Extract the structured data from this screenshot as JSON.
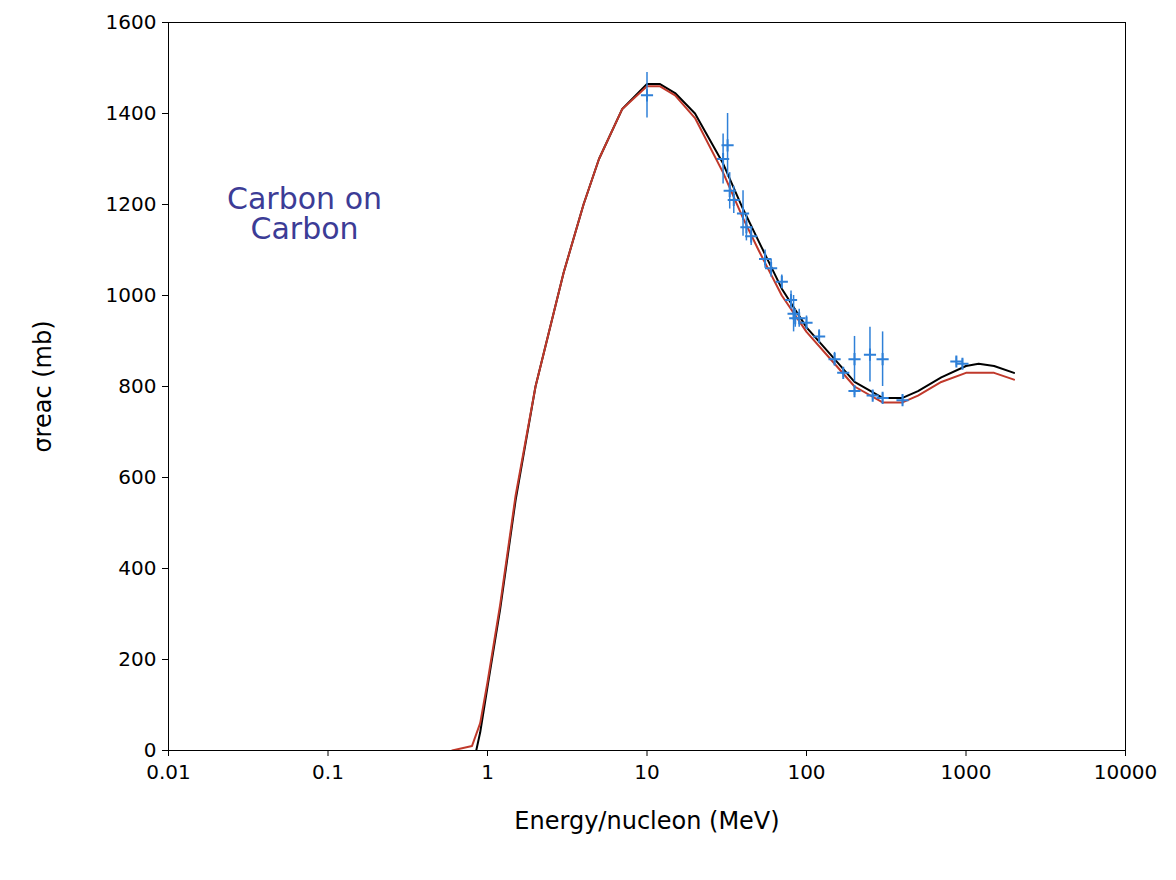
{
  "chart_data": {
    "type": "line",
    "annotation": "Carbon on Carbon",
    "x_label": "Energy/nucleon (MeV)",
    "y_label": "σreac (mb)",
    "log": "x",
    "grid": false,
    "xlim": [
      0.01,
      10000
    ],
    "xticks": [
      0.01,
      0.1,
      1,
      10,
      100,
      1000,
      10000
    ],
    "ylim": [
      0,
      1600
    ],
    "yticks": [
      0,
      200,
      400,
      600,
      800,
      1000,
      1200,
      1400,
      1600
    ],
    "series": [
      {
        "type": "line",
        "color": "#000000",
        "x": [
          0.85,
          0.9,
          1,
          1.2,
          1.5,
          2,
          3,
          4,
          5,
          7,
          10,
          12,
          15,
          20,
          30,
          40,
          50,
          70,
          100,
          150,
          200,
          300,
          400,
          500,
          700,
          1000,
          1200,
          1500,
          2000
        ],
        "values": [
          0,
          40,
          140,
          310,
          550,
          800,
          1050,
          1200,
          1300,
          1410,
          1465,
          1465,
          1445,
          1400,
          1290,
          1190,
          1120,
          1015,
          930,
          860,
          810,
          775,
          775,
          790,
          820,
          845,
          850,
          845,
          830
        ]
      },
      {
        "type": "line",
        "color": "#c0392b",
        "x": [
          0.6,
          0.8,
          0.9,
          1,
          1.2,
          1.5,
          2,
          3,
          4,
          5,
          7,
          10,
          12,
          15,
          20,
          30,
          40,
          50,
          70,
          100,
          150,
          200,
          300,
          400,
          500,
          700,
          1000,
          1500,
          2000
        ],
        "values": [
          0,
          10,
          60,
          150,
          320,
          560,
          800,
          1050,
          1200,
          1300,
          1410,
          1460,
          1460,
          1440,
          1390,
          1270,
          1170,
          1100,
          1000,
          920,
          850,
          800,
          765,
          765,
          780,
          810,
          830,
          830,
          815
        ]
      },
      {
        "type": "scatter",
        "color": "#2f80d8",
        "marker": "plus",
        "x": [
          10,
          30,
          32,
          33,
          35,
          40,
          42,
          45,
          55,
          60,
          70,
          80,
          83,
          85,
          90,
          100,
          120,
          150,
          170,
          200,
          200,
          250,
          260,
          300,
          300,
          400,
          870,
          950
        ],
        "values": [
          1440,
          1300,
          1330,
          1230,
          1210,
          1180,
          1150,
          1130,
          1080,
          1060,
          1030,
          990,
          960,
          950,
          950,
          940,
          910,
          860,
          830,
          860,
          790,
          870,
          780,
          860,
          775,
          770,
          855,
          850
        ],
        "errors": [
          50,
          55,
          70,
          40,
          30,
          50,
          30,
          20,
          20,
          20,
          15,
          20,
          40,
          20,
          20,
          15,
          15,
          15,
          10,
          50,
          10,
          60,
          10,
          60,
          10,
          10,
          10,
          10
        ]
      }
    ]
  }
}
